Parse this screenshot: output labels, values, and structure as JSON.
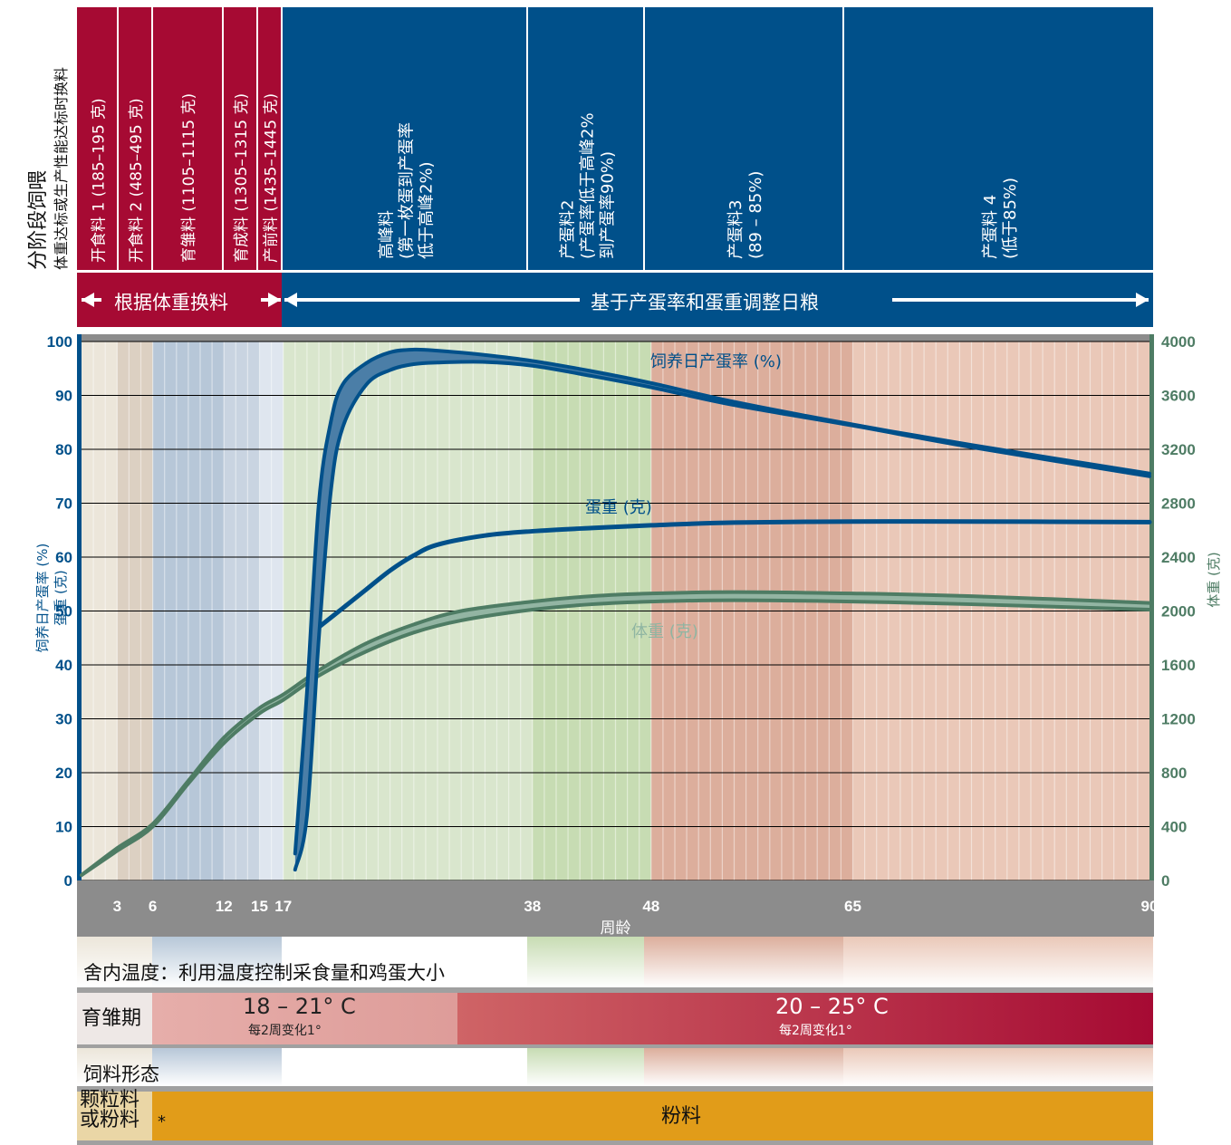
{
  "header": {
    "title": "分阶段饲喂",
    "subtitle": "体重达标或生产性能达标时换料"
  },
  "phases": [
    {
      "name": "开食料 1",
      "weight": "(185–195 克)",
      "section": "red"
    },
    {
      "name": "开食料 2",
      "weight": "(485–495 克)",
      "section": "red"
    },
    {
      "name": "育雏料",
      "weight": "(1105–1115 克)",
      "section": "red"
    },
    {
      "name": "育成料",
      "weight": "(1305–1315 克)",
      "section": "red"
    },
    {
      "name": "产前料",
      "weight": "(1435–1445 克)",
      "section": "red"
    },
    {
      "name": "高峰料",
      "lines": [
        "高峰料",
        "(第一枚蛋到产蛋率",
        "低于高峰2%)"
      ],
      "section": "blue"
    },
    {
      "name": "产蛋料2",
      "lines": [
        "产蛋料2",
        "(产蛋率低于高峰2%",
        "到产蛋率90%)"
      ],
      "section": "blue"
    },
    {
      "name": "产蛋料3",
      "lines": [
        "产蛋料3",
        "(89 – 85%)"
      ],
      "section": "blue"
    },
    {
      "name": "产蛋料 4",
      "lines": [
        "产蛋料 4",
        "(低于85%)"
      ],
      "section": "blue"
    }
  ],
  "arrows": {
    "left": "根据体重换料",
    "right": "基于产蛋率和蛋重调整日粮"
  },
  "colors": {
    "red": "#a60a33",
    "blue": "#00508a",
    "green": "#4e7c64",
    "gray": "#8c8c8c",
    "orange": "#e19c19"
  },
  "chart_data": {
    "type": "line",
    "xlabel": "周龄",
    "ylabel_left": "饲养日产蛋率 (%) 蛋重 (克)",
    "ylabel_right": "体重 (克)",
    "xticks": [
      3,
      6,
      12,
      15,
      17,
      38,
      48,
      65,
      90
    ],
    "xlim": [
      0,
      90
    ],
    "ylim_left": [
      0,
      100
    ],
    "ylim_right": [
      0,
      4000
    ],
    "yticks_left": [
      0,
      10,
      20,
      30,
      40,
      50,
      60,
      70,
      80,
      90,
      100
    ],
    "yticks_right": [
      0,
      400,
      800,
      1200,
      1600,
      2000,
      2400,
      2800,
      3200,
      3600,
      4000
    ],
    "series": [
      {
        "name": "饲养日产蛋率 (%)",
        "axis": "left",
        "x": [
          18,
          19,
          20,
          21,
          22,
          24,
          26,
          28,
          30,
          34,
          38,
          43,
          48,
          55,
          65,
          75,
          90
        ],
        "upper": [
          5,
          35,
          70,
          85,
          92,
          96,
          98,
          98.5,
          98.3,
          97.5,
          96.4,
          94.5,
          92.3,
          88.8,
          84.6,
          80.8,
          75.5
        ],
        "lower": [
          2,
          12,
          45,
          72,
          84,
          92,
          94.7,
          95.8,
          96.1,
          96.2,
          95.5,
          93.6,
          91.5,
          88.2,
          84.4,
          80.4,
          75
        ]
      },
      {
        "name": "蛋重 (克)",
        "axis": "left",
        "x": [
          20,
          22,
          24,
          26,
          28,
          30,
          34,
          38,
          43,
          48,
          55,
          65,
          75,
          90
        ],
        "values": [
          47,
          50.5,
          54,
          57.5,
          60.3,
          62.3,
          64,
          64.8,
          65.4,
          65.9,
          66.4,
          66.6,
          66.6,
          66.5
        ]
      },
      {
        "name": "体重 (克)",
        "axis": "right",
        "x": [
          0,
          3,
          6,
          9,
          12,
          15,
          17,
          20,
          24,
          28,
          32,
          38,
          43,
          48,
          55,
          65,
          75,
          90
        ],
        "upper": [
          40,
          240,
          420,
          740,
          1060,
          1280,
          1380,
          1560,
          1760,
          1900,
          2000,
          2070,
          2110,
          2130,
          2140,
          2130,
          2110,
          2060
        ],
        "lower": [
          40,
          220,
          400,
          720,
          1020,
          1240,
          1340,
          1520,
          1700,
          1840,
          1930,
          2010,
          2050,
          2070,
          2080,
          2070,
          2050,
          2010
        ]
      }
    ]
  },
  "temperature": {
    "section_label": "舍内温度：利用温度控制采食量和鸡蛋大小",
    "period_label": "育雏期",
    "brooding_temp": "18 – 21° C",
    "brooding_note": "每2周变化1°",
    "laying_temp": "20 – 25° C",
    "laying_note": "每2周变化1°"
  },
  "feed_form": {
    "section_label": "饲料形态",
    "left_label_1": "颗粒料",
    "left_label_2": "或粉料",
    "asterisk": "*",
    "main_label": "粉料"
  }
}
